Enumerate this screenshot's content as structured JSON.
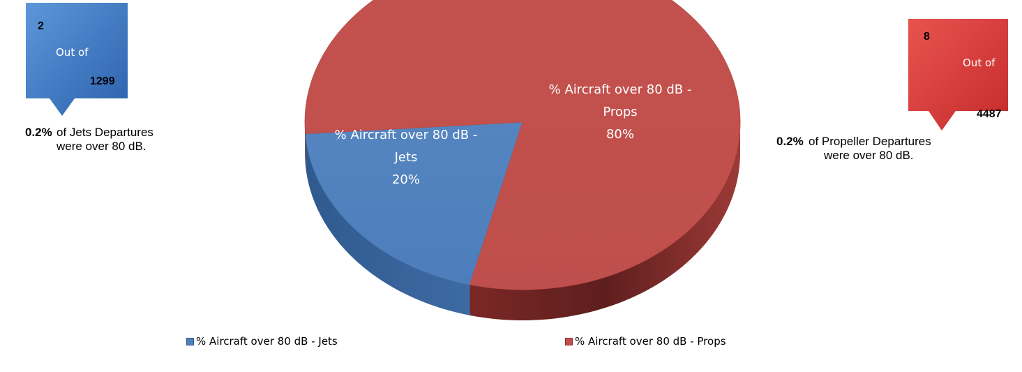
{
  "chart_data": {
    "type": "pie",
    "title": "",
    "slices": [
      {
        "label": "% Aircraft over 80 dB - Jets",
        "value": 20,
        "data_label_lines": [
          "% Aircraft over 80 dB -",
          "Jets",
          "20%"
        ],
        "color": "#4f81bd"
      },
      {
        "label": "% Aircraft over 80 dB - Props",
        "value": 80,
        "data_label_lines": [
          "% Aircraft over 80 dB -",
          "Props",
          "80%"
        ],
        "color": "#c0504d"
      }
    ],
    "legend_position": "bottom",
    "style": "3d"
  },
  "callouts": {
    "jets": {
      "count": "2",
      "out_of": "Out of",
      "total": "1299",
      "color": "#3a75c4"
    },
    "props": {
      "count": "8",
      "out_of": "Out of",
      "total": "4487",
      "color": "#d63b3b"
    }
  },
  "notes": {
    "jets": {
      "percent": "0.2%",
      "line1": "of Jets Departures",
      "line2": "were over 80 dB."
    },
    "props": {
      "percent": "0.2%",
      "line1": "of  Propeller Departures",
      "line2": "were over 80 dB."
    }
  },
  "legend": {
    "jets": "% Aircraft over 80 dB - Jets",
    "props": "% Aircraft over 80 dB - Props"
  }
}
